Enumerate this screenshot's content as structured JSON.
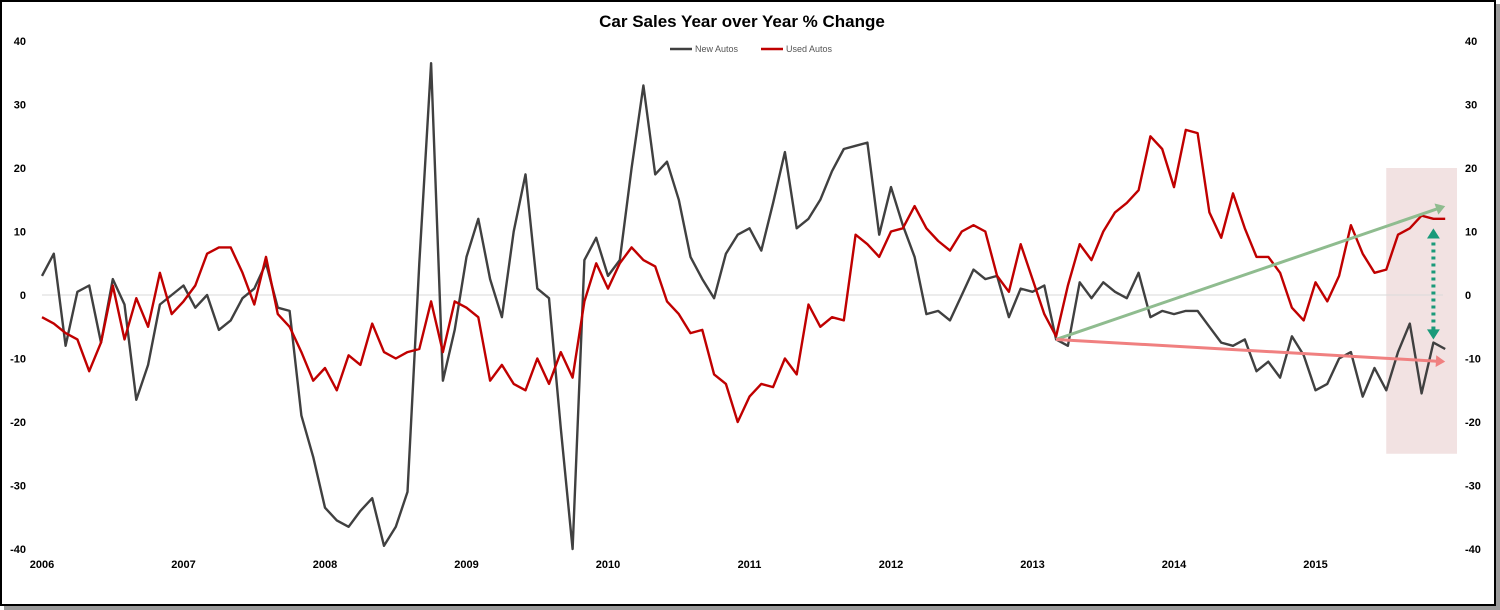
{
  "chart_data": {
    "type": "line",
    "title": "Car Sales Year over Year % Change",
    "xlabel": "",
    "ylabel": "",
    "x_ticks": [
      "2006",
      "2007",
      "2008",
      "2009",
      "2010",
      "2011",
      "2012",
      "2013",
      "2014",
      "2015"
    ],
    "y_ticks": [
      "40",
      "30",
      "20",
      "10",
      "0",
      "-10",
      "-20",
      "-30",
      "-40"
    ],
    "ylim": [
      -40,
      40
    ],
    "x_start": "2006-01",
    "grid": false,
    "legend_position": "top-center",
    "colors": {
      "New Autos": "#404040",
      "Used Autos": "#c00000"
    },
    "series": [
      {
        "name": "New Autos",
        "values": [
          3,
          6.5,
          -8,
          0.5,
          1.5,
          -7.5,
          2.5,
          -1.5,
          -16.5,
          -11,
          -1.5,
          0,
          1.5,
          -2,
          0,
          -5.5,
          -4,
          -0.5,
          1,
          5,
          -2,
          -2.5,
          -19,
          -25.5,
          -33.5,
          -35.5,
          -36.5,
          -34,
          -32,
          -39.5,
          -36.5,
          -31,
          5,
          36.5,
          -13.5,
          -5.5,
          6,
          12,
          2.5,
          -3.5,
          10,
          19,
          1,
          -0.5,
          -21,
          -40,
          5.5,
          9,
          3,
          5.5,
          20,
          33,
          19,
          21,
          15,
          6,
          2.5,
          -0.5,
          6.5,
          9.5,
          10.5,
          7,
          14.5,
          22.5,
          10.5,
          12,
          15,
          19.5,
          23,
          23.5,
          24,
          9.5,
          17,
          11,
          6,
          -3,
          -2.5,
          -4,
          0,
          4,
          2.5,
          3,
          -3.5,
          1,
          0.5,
          1.5,
          -7,
          -8,
          2,
          -0.5,
          2,
          0.5,
          -0.5,
          3.5,
          -3.5,
          -2.5,
          -3,
          -2.5,
          -2.5,
          -5,
          -7.5,
          -8,
          -7,
          -12,
          -10.5,
          -13,
          -6.5,
          -9.5,
          -15,
          -14,
          -10,
          -9,
          -16,
          -11.5,
          -15,
          -9,
          -4.5,
          -15.5,
          -7.5,
          -8.5
        ]
      },
      {
        "name": "Used Autos",
        "values": [
          -3.5,
          -4.5,
          -6,
          -7,
          -12,
          -7.5,
          1.5,
          -7,
          -0.5,
          -5,
          3.5,
          -3,
          -1,
          1.5,
          6.5,
          7.5,
          7.5,
          3.5,
          -1.5,
          6,
          -3,
          -5,
          -9,
          -13.5,
          -11.5,
          -15,
          -9.5,
          -11,
          -4.5,
          -9,
          -10,
          -9,
          -8.5,
          -1,
          -9,
          -1,
          -2,
          -3.5,
          -13.5,
          -11,
          -14,
          -15,
          -10,
          -14,
          -9,
          -13,
          -1,
          5,
          1,
          5,
          7.5,
          5.5,
          4.5,
          -1,
          -3,
          -6,
          -5.5,
          -12.5,
          -14,
          -20,
          -16,
          -14,
          -14.5,
          -10,
          -12.5,
          -1.5,
          -5,
          -3.5,
          -4,
          9.5,
          8,
          6,
          10,
          10.5,
          14,
          10.5,
          8.5,
          7,
          10,
          11,
          10,
          3,
          0.5,
          8,
          2.5,
          -3,
          -6.5,
          1.5,
          8,
          5.5,
          10,
          13,
          14.5,
          16.5,
          25,
          23,
          17,
          26,
          25.5,
          13,
          9,
          16,
          10.5,
          6,
          6,
          3.5,
          -2,
          -4,
          2,
          -1,
          3,
          11,
          6.5,
          3.5,
          4,
          9.5,
          10.5,
          12.5,
          12,
          12
        ]
      }
    ],
    "annotations": [
      {
        "kind": "trend-arrow",
        "color": "#8fbc8f",
        "from": {
          "x": "2013-03",
          "y": -7
        },
        "to": {
          "x": "2015-12",
          "y": 14
        }
      },
      {
        "kind": "trend-arrow",
        "color": "#f08080",
        "from": {
          "x": "2013-03",
          "y": -7
        },
        "to": {
          "x": "2015-12",
          "y": -10.5
        }
      },
      {
        "kind": "gap-arrow",
        "color": "#1a9a7a",
        "from": {
          "x": "2015-11",
          "y": -7
        },
        "to": {
          "x": "2015-11",
          "y": 10.5
        }
      },
      {
        "kind": "shaded-region",
        "color": "#e8caca",
        "x_range": [
          "2015-07",
          "2016-01"
        ],
        "y_range": [
          -25,
          20
        ]
      }
    ]
  }
}
